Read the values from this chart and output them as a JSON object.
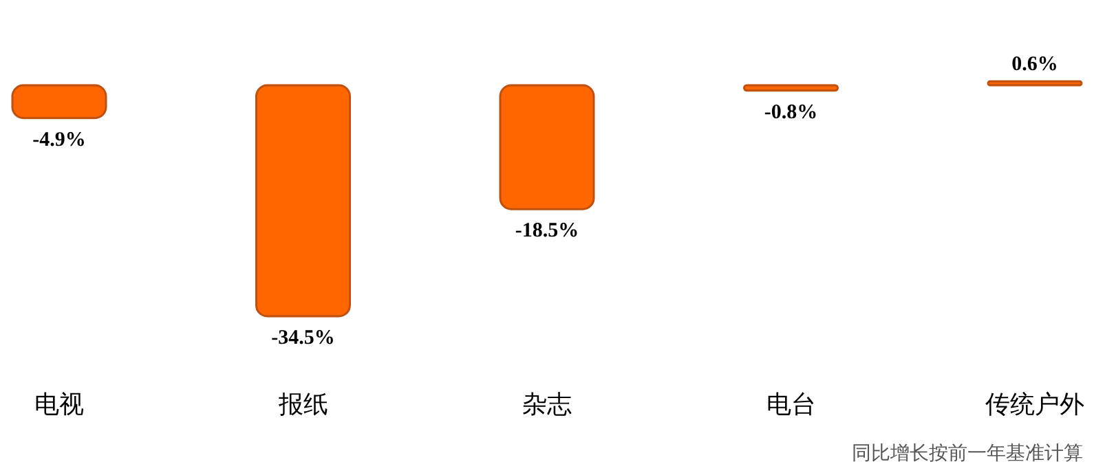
{
  "chart_data": {
    "type": "bar",
    "categories": [
      "电视",
      "报纸",
      "杂志",
      "电台",
      "传统户外"
    ],
    "values": [
      -4.9,
      -34.5,
      -18.5,
      -0.8,
      0.6
    ],
    "value_labels": [
      "-4.9%",
      "-34.5%",
      "-18.5%",
      "-0.8%",
      "0.6%"
    ],
    "color": "#ff6600",
    "annotations": [
      "同比增长按前一年基准计算"
    ]
  }
}
